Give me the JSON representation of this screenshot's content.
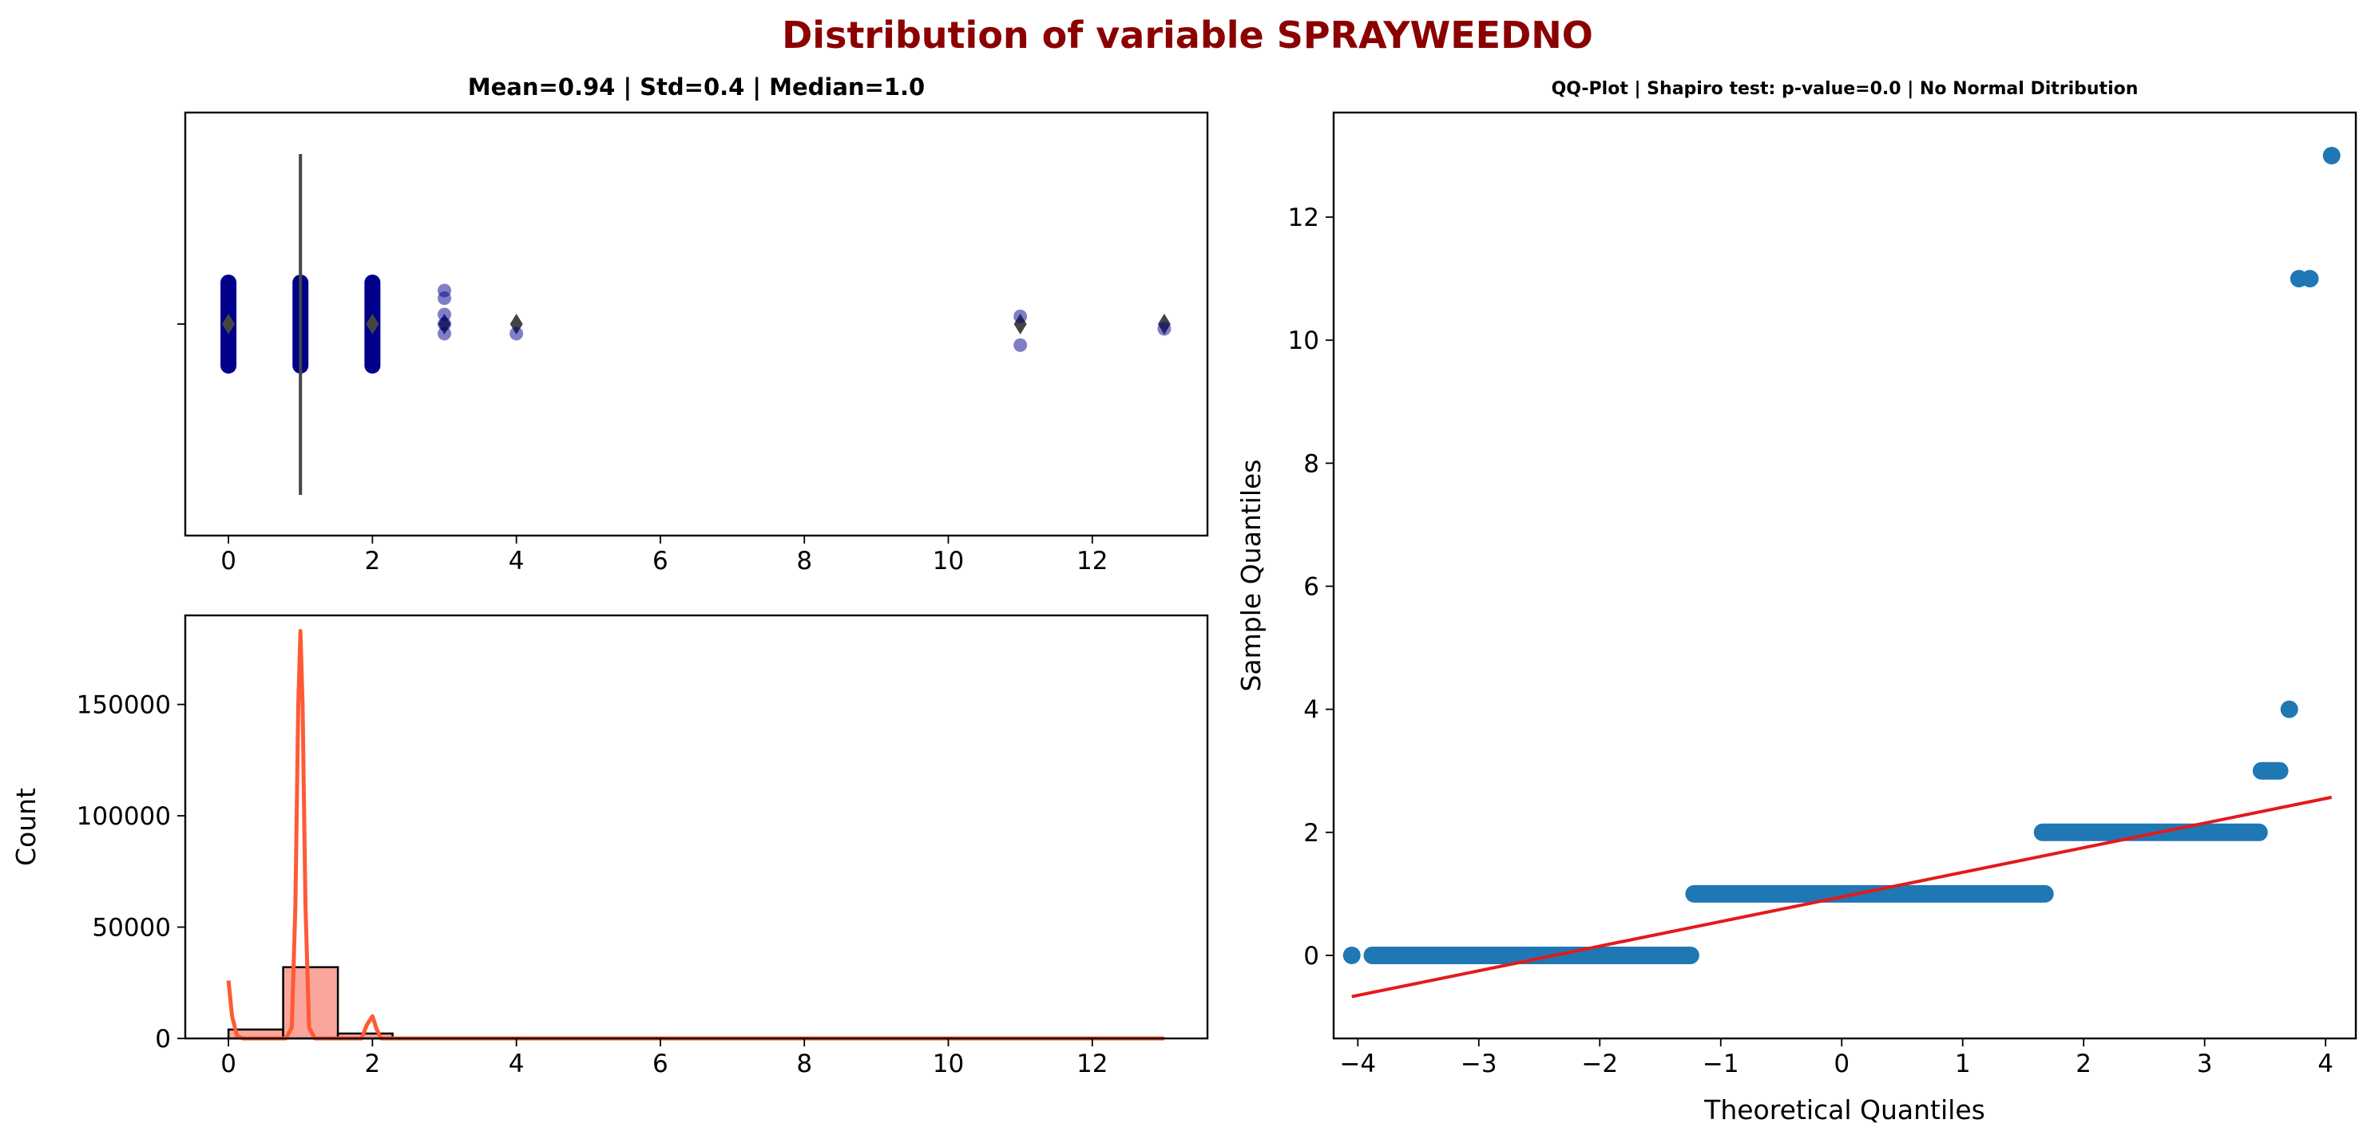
{
  "figure": {
    "title": "Distribution of variable SPRAYWEEDNO",
    "title_color": "#8b0000"
  },
  "chart_data": [
    {
      "id": "boxplot",
      "type": "boxplot",
      "title": "Mean=0.94 | Std=0.4 | Median=1.0",
      "xlim": [
        -0.6,
        13.6
      ],
      "xticks": [
        0,
        2,
        4,
        6,
        8,
        10,
        12
      ],
      "box": {
        "q1": 1,
        "median": 1,
        "q3": 1,
        "whisker_low": 1,
        "whisker_high": 1
      },
      "outliers": [
        0,
        2,
        3,
        4,
        11,
        13
      ],
      "strip_points": [
        {
          "x": 0,
          "dense": true
        },
        {
          "x": 1,
          "dense": true
        },
        {
          "x": 2,
          "dense": true
        },
        {
          "x": 3,
          "jitter": [
            0.35,
            -0.1,
            0.0,
            0.1,
            0.27
          ]
        },
        {
          "x": 4,
          "jitter": [
            -0.1
          ]
        },
        {
          "x": 11,
          "jitter": [
            -0.22,
            0.08
          ]
        },
        {
          "x": 13,
          "jitter": [
            -0.05
          ]
        }
      ],
      "strip_color": "#00008b",
      "outlier_color": "#444444",
      "grid": false
    },
    {
      "id": "histogram",
      "type": "bar",
      "title": "",
      "xlabel": "",
      "ylabel": "Count",
      "xlim": [
        -0.6,
        13.6
      ],
      "ylim": [
        0,
        190000
      ],
      "xticks": [
        0,
        2,
        4,
        6,
        8,
        10,
        12
      ],
      "yticks": [
        0,
        50000,
        100000,
        150000
      ],
      "bins": [
        {
          "x0": 0.0,
          "x1": 0.76,
          "count": 4000
        },
        {
          "x0": 0.76,
          "x1": 1.52,
          "count": 32000
        },
        {
          "x0": 1.52,
          "x1": 2.28,
          "count": 2200
        },
        {
          "x0": 2.28,
          "x1": 13.0,
          "count": 0
        }
      ],
      "bar_fill": "#fa8072",
      "bar_edge": "#000000",
      "kde": [
        [
          0.0,
          26000
        ],
        [
          0.05,
          10000
        ],
        [
          0.12,
          1000
        ],
        [
          0.2,
          0
        ],
        [
          0.8,
          0
        ],
        [
          0.88,
          5000
        ],
        [
          0.93,
          60000
        ],
        [
          0.97,
          150000
        ],
        [
          1.0,
          183000
        ],
        [
          1.03,
          150000
        ],
        [
          1.07,
          60000
        ],
        [
          1.12,
          5000
        ],
        [
          1.2,
          0
        ],
        [
          1.85,
          0
        ],
        [
          1.92,
          6000
        ],
        [
          2.0,
          10000
        ],
        [
          2.06,
          4000
        ],
        [
          2.12,
          0
        ],
        [
          13.0,
          0
        ]
      ],
      "kde_color": "#ff5a36",
      "grid": false
    },
    {
      "id": "qqplot",
      "type": "scatter",
      "title": "QQ-Plot | Shapiro test: p-value=0.0 | No Normal Ditribution",
      "xlabel": "Theoretical Quantiles",
      "ylabel": "Sample Quantiles",
      "xlim": [
        -4.2,
        4.25
      ],
      "ylim": [
        -1.35,
        13.7
      ],
      "xticks": [
        -4,
        -3,
        -2,
        -1,
        0,
        1,
        2,
        3,
        4
      ],
      "yticks": [
        0,
        2,
        4,
        6,
        8,
        10,
        12
      ],
      "segments": [
        {
          "y": 0,
          "x_from": -3.86,
          "x_to": -1.25
        },
        {
          "y": 1,
          "x_from": -1.22,
          "x_to": 1.68
        },
        {
          "y": 2,
          "x_from": 1.66,
          "x_to": 3.45
        },
        {
          "y": 3,
          "x_from": 3.47,
          "x_to": 3.62
        }
      ],
      "points": [
        [
          -4.05,
          0
        ],
        [
          -3.88,
          0
        ],
        [
          -3.78,
          0
        ],
        [
          -3.7,
          0
        ],
        [
          3.48,
          3
        ],
        [
          3.7,
          4
        ],
        [
          3.78,
          11
        ],
        [
          3.87,
          11
        ],
        [
          4.05,
          13
        ]
      ],
      "line": {
        "x": [
          -4.05,
          4.05
        ],
        "y": [
          -0.67,
          2.57
        ]
      },
      "point_color": "#1f77b4",
      "line_color": "#e31a1c",
      "grid": false
    }
  ]
}
